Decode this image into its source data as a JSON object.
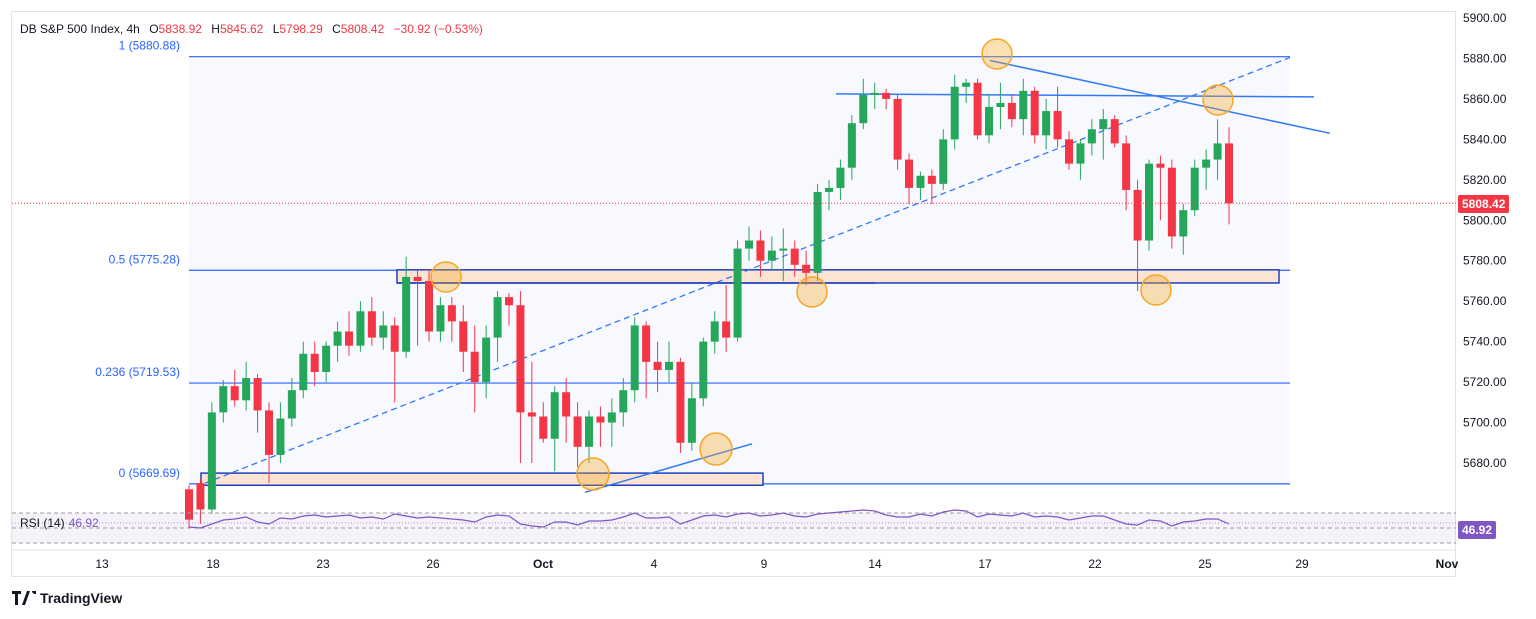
{
  "header": {
    "symbol": "DB S&P 500 Index, 4h",
    "open_label": "O",
    "open": "5838.92",
    "high_label": "H",
    "high": "5845.62",
    "low_label": "L",
    "low": "5798.29",
    "close_label": "C",
    "close": "5808.42",
    "change": "−30.92 (−0.53%)"
  },
  "brand": "TradingView",
  "colors": {
    "up": "#26a65b",
    "down": "#f23645",
    "fib": "#2962ff",
    "trend": "#3179f5",
    "rsi": "#7e57c2",
    "zone": "#fbe4d3",
    "circle": "#f5a623"
  },
  "chart_data": {
    "type": "candlestick",
    "ylim": [
      5655,
      5900
    ],
    "y_ticks": [
      "5680.00",
      "5700.00",
      "5720.00",
      "5740.00",
      "5760.00",
      "5780.00",
      "5800.00",
      "5820.00",
      "5840.00",
      "5860.00",
      "5880.00",
      "5900.00"
    ],
    "x_ticks": [
      "13",
      "18",
      "23",
      "26",
      "Oct",
      "4",
      "9",
      "14",
      "17",
      "22",
      "25",
      "29",
      "Nov"
    ],
    "last_price": "5808.42",
    "fib_levels": [
      {
        "label": "1 (5880.88)",
        "value": 5880.88
      },
      {
        "label": "0.5 (5775.28)",
        "value": 5775.28
      },
      {
        "label": "0.236 (5719.53)",
        "value": 5719.53
      },
      {
        "label": "0 (5669.69)",
        "value": 5669.69
      }
    ],
    "candles": [
      [
        5667,
        5669,
        5648,
        5652
      ],
      [
        5670,
        5672,
        5650,
        5657
      ],
      [
        5657,
        5710,
        5655,
        5705
      ],
      [
        5705,
        5721,
        5700,
        5718
      ],
      [
        5718,
        5726,
        5708,
        5711
      ],
      [
        5711,
        5730,
        5706,
        5722
      ],
      [
        5722,
        5724,
        5695,
        5706
      ],
      [
        5706,
        5710,
        5670,
        5684
      ],
      [
        5684,
        5710,
        5680,
        5702
      ],
      [
        5702,
        5722,
        5698,
        5716
      ],
      [
        5716,
        5740,
        5712,
        5734
      ],
      [
        5734,
        5740,
        5718,
        5725
      ],
      [
        5725,
        5740,
        5720,
        5738
      ],
      [
        5738,
        5750,
        5730,
        5745
      ],
      [
        5745,
        5755,
        5733,
        5738
      ],
      [
        5738,
        5760,
        5735,
        5755
      ],
      [
        5755,
        5762,
        5738,
        5742
      ],
      [
        5742,
        5755,
        5736,
        5748
      ],
      [
        5748,
        5752,
        5710,
        5735
      ],
      [
        5735,
        5782,
        5732,
        5772
      ],
      [
        5772,
        5775,
        5738,
        5770
      ],
      [
        5770,
        5776,
        5740,
        5745
      ],
      [
        5745,
        5762,
        5740,
        5758
      ],
      [
        5758,
        5762,
        5740,
        5750
      ],
      [
        5750,
        5758,
        5725,
        5735
      ],
      [
        5735,
        5748,
        5705,
        5720
      ],
      [
        5720,
        5748,
        5712,
        5742
      ],
      [
        5742,
        5765,
        5730,
        5762
      ],
      [
        5762,
        5764,
        5748,
        5758
      ],
      [
        5758,
        5765,
        5680,
        5705
      ],
      [
        5705,
        5730,
        5680,
        5703
      ],
      [
        5703,
        5710,
        5690,
        5692
      ],
      [
        5692,
        5718,
        5676,
        5715
      ],
      [
        5715,
        5722,
        5690,
        5703
      ],
      [
        5703,
        5710,
        5678,
        5688
      ],
      [
        5688,
        5706,
        5680,
        5703
      ],
      [
        5703,
        5708,
        5688,
        5700
      ],
      [
        5700,
        5712,
        5688,
        5705
      ],
      [
        5705,
        5722,
        5698,
        5716
      ],
      [
        5716,
        5752,
        5710,
        5748
      ],
      [
        5748,
        5750,
        5712,
        5730
      ],
      [
        5730,
        5740,
        5715,
        5726
      ],
      [
        5726,
        5740,
        5720,
        5730
      ],
      [
        5730,
        5732,
        5685,
        5690
      ],
      [
        5690,
        5720,
        5686,
        5712
      ],
      [
        5712,
        5742,
        5708,
        5740
      ],
      [
        5740,
        5755,
        5734,
        5750
      ],
      [
        5750,
        5768,
        5735,
        5742
      ],
      [
        5742,
        5790,
        5740,
        5786
      ],
      [
        5786,
        5797,
        5780,
        5790
      ],
      [
        5790,
        5795,
        5772,
        5780
      ],
      [
        5780,
        5792,
        5775,
        5785
      ],
      [
        5785,
        5796,
        5770,
        5786
      ],
      [
        5786,
        5790,
        5772,
        5778
      ],
      [
        5778,
        5785,
        5768,
        5774
      ],
      [
        5774,
        5818,
        5770,
        5814
      ],
      [
        5814,
        5820,
        5805,
        5816
      ],
      [
        5816,
        5830,
        5810,
        5826
      ],
      [
        5826,
        5852,
        5820,
        5848
      ],
      [
        5848,
        5870,
        5845,
        5862
      ],
      [
        5862,
        5868,
        5855,
        5863
      ],
      [
        5863,
        5865,
        5855,
        5860
      ],
      [
        5860,
        5862,
        5825,
        5830
      ],
      [
        5830,
        5833,
        5808,
        5816
      ],
      [
        5816,
        5824,
        5810,
        5822
      ],
      [
        5822,
        5825,
        5808,
        5818
      ],
      [
        5818,
        5845,
        5815,
        5840
      ],
      [
        5840,
        5872,
        5835,
        5866
      ],
      [
        5866,
        5870,
        5858,
        5868
      ],
      [
        5868,
        5870,
        5840,
        5842
      ],
      [
        5842,
        5862,
        5838,
        5856
      ],
      [
        5856,
        5868,
        5845,
        5858
      ],
      [
        5858,
        5862,
        5846,
        5850
      ],
      [
        5850,
        5870,
        5842,
        5864
      ],
      [
        5864,
        5866,
        5838,
        5842
      ],
      [
        5842,
        5860,
        5835,
        5854
      ],
      [
        5854,
        5866,
        5836,
        5840
      ],
      [
        5840,
        5844,
        5825,
        5828
      ],
      [
        5828,
        5840,
        5820,
        5838
      ],
      [
        5838,
        5850,
        5832,
        5845
      ],
      [
        5845,
        5855,
        5830,
        5850
      ],
      [
        5850,
        5852,
        5836,
        5838
      ],
      [
        5838,
        5842,
        5805,
        5815
      ],
      [
        5815,
        5820,
        5765,
        5790
      ],
      [
        5790,
        5830,
        5785,
        5828
      ],
      [
        5828,
        5832,
        5800,
        5826
      ],
      [
        5826,
        5830,
        5786,
        5792
      ],
      [
        5792,
        5808,
        5783,
        5805
      ],
      [
        5805,
        5830,
        5802,
        5826
      ],
      [
        5826,
        5835,
        5815,
        5830
      ],
      [
        5830,
        5850,
        5820,
        5838
      ],
      [
        5838,
        5846,
        5798,
        5808.42
      ]
    ],
    "rsi": {
      "label": "RSI (14)",
      "value": "46.92"
    }
  }
}
